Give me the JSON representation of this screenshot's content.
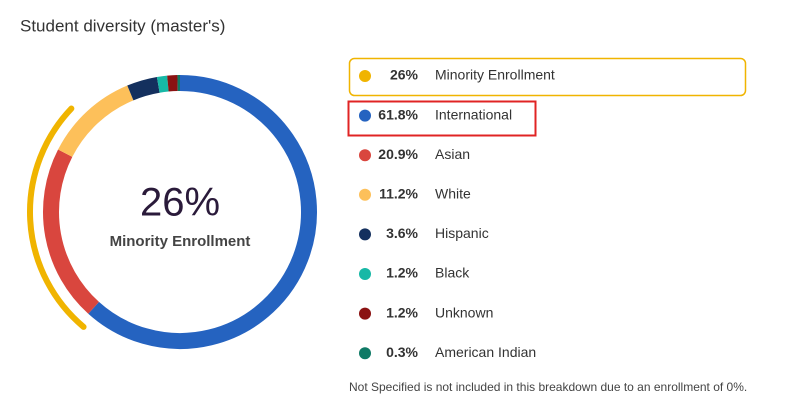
{
  "chart_data": {
    "type": "donut",
    "title": "Student diversity (master's)",
    "highlight": {
      "name": "Minority Enrollment",
      "value": 26,
      "value_label": "26%",
      "color": "#f0b400"
    },
    "categories": [
      "International",
      "Asian",
      "White",
      "Hispanic",
      "Black",
      "Unknown",
      "American Indian"
    ],
    "values": [
      61.8,
      20.9,
      11.2,
      3.6,
      1.2,
      1.2,
      0.3
    ],
    "value_labels": [
      "61.8%",
      "20.9%",
      "11.2%",
      "3.6%",
      "1.2%",
      "1.2%",
      "0.3%"
    ],
    "colors": [
      "#2563c0",
      "#d9463e",
      "#fdc05a",
      "#14305e",
      "#17b8a6",
      "#8b1212",
      "#0f7a66"
    ],
    "note": "Not Specified is not included in this breakdown due to an enrollment of 0%."
  }
}
